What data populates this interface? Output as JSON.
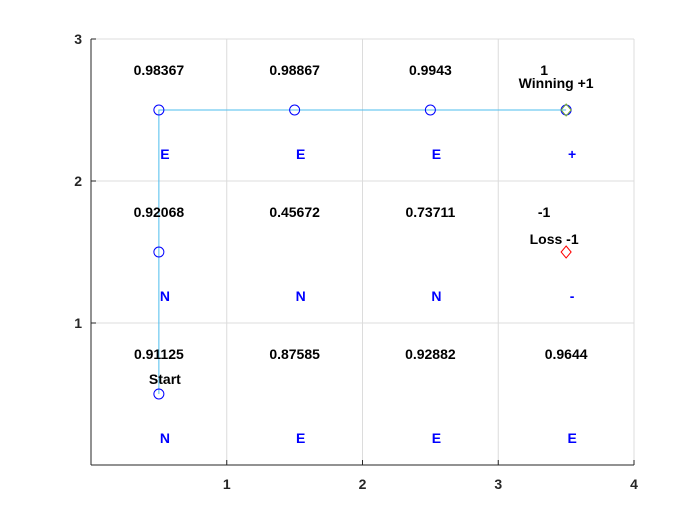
{
  "chart_data": {
    "type": "scatter",
    "xlim": [
      0,
      4
    ],
    "ylim": [
      0,
      3
    ],
    "x_ticks": [
      "1",
      "2",
      "3",
      "4"
    ],
    "y_ticks": [
      "1",
      "2",
      "3"
    ],
    "grid": true,
    "path": {
      "color": "#4dbeee",
      "marker_color": "#0000ff",
      "points": [
        {
          "x": 0.5,
          "y": 0.5
        },
        {
          "x": 0.5,
          "y": 1.5
        },
        {
          "x": 0.5,
          "y": 2.5
        },
        {
          "x": 1.5,
          "y": 2.5
        },
        {
          "x": 2.5,
          "y": 2.5
        },
        {
          "x": 3.5,
          "y": 2.5
        }
      ]
    },
    "goal_marker": {
      "x": 3.5,
      "y": 2.5,
      "color": "#77ac30"
    },
    "loss_marker": {
      "x": 3.5,
      "y": 1.5,
      "color": "#ff0000"
    },
    "cells": [
      {
        "x": 0.5,
        "y": 2.5,
        "value": "0.98367",
        "action": "E"
      },
      {
        "x": 1.5,
        "y": 2.5,
        "value": "0.98867",
        "action": "E"
      },
      {
        "x": 2.5,
        "y": 2.5,
        "value": "0.9943",
        "action": "E"
      },
      {
        "x": 3.5,
        "y": 2.5,
        "value": "1",
        "action": "+"
      },
      {
        "x": 0.5,
        "y": 1.5,
        "value": "0.92068",
        "action": "N"
      },
      {
        "x": 1.5,
        "y": 1.5,
        "value": "0.45672",
        "action": "N"
      },
      {
        "x": 2.5,
        "y": 1.5,
        "value": "0.73711",
        "action": "N"
      },
      {
        "x": 3.5,
        "y": 1.5,
        "value": "-1",
        "action": "-"
      },
      {
        "x": 0.5,
        "y": 0.5,
        "value": "0.91125",
        "action": "N"
      },
      {
        "x": 1.5,
        "y": 0.5,
        "value": "0.87585",
        "action": "E"
      },
      {
        "x": 2.5,
        "y": 0.5,
        "value": "0.92882",
        "action": "E"
      },
      {
        "x": 3.5,
        "y": 0.5,
        "value": "0.9644",
        "action": "E"
      }
    ],
    "annotations": [
      {
        "x": 3.5,
        "y": 2.5,
        "text": "Winning +1"
      },
      {
        "x": 3.5,
        "y": 1.5,
        "text": "Loss -1"
      },
      {
        "x": 0.5,
        "y": 0.5,
        "text": "Start"
      }
    ],
    "colors": {
      "value_text": "#000000",
      "action_text": "#0000ff",
      "grid": "#dcdcdc",
      "axis": "#262626"
    }
  }
}
